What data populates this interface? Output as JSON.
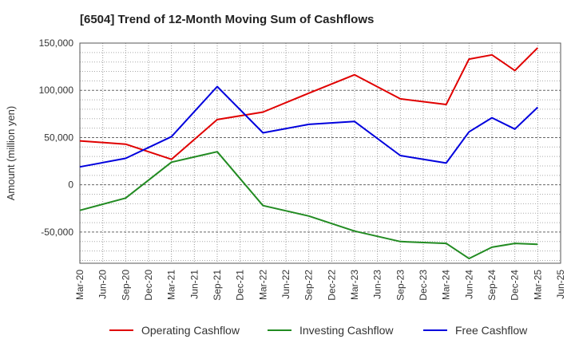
{
  "chart_data": {
    "type": "line",
    "title": "[6504]  Trend of 12-Month Moving Sum of Cashflows",
    "xlabel": "",
    "ylabel": "Amount (million yen)",
    "x": [
      "Mar-20",
      "Jun-20",
      "Sep-20",
      "Dec-20",
      "Mar-21",
      "Jun-21",
      "Sep-21",
      "Dec-21",
      "Mar-22",
      "Jun-22",
      "Sep-22",
      "Dec-22",
      "Mar-23",
      "Jun-23",
      "Sep-23",
      "Dec-23",
      "Mar-24",
      "Jun-24",
      "Sep-24",
      "Dec-24",
      "Mar-25",
      "Jun-25"
    ],
    "yticks": [
      150000,
      100000,
      50000,
      0,
      -50000
    ],
    "ytick_labels": [
      "150,000",
      "100,000",
      "50,000",
      "0",
      "-50,000"
    ],
    "ylim": [
      -83000,
      150000
    ],
    "grid": true,
    "legend_position": "bottom",
    "series": [
      {
        "name": "Operating Cashflow",
        "color": "#e00000",
        "values": [
          46500,
          null,
          43000,
          null,
          27000,
          null,
          69000,
          null,
          77000,
          null,
          97000,
          null,
          116500,
          null,
          91000,
          null,
          85000,
          133000,
          137500,
          121000,
          145000,
          null
        ]
      },
      {
        "name": "Investing Cashflow",
        "color": "#228b22",
        "values": [
          -27000,
          null,
          -14000,
          null,
          24000,
          null,
          35000,
          null,
          -22000,
          null,
          -33000,
          null,
          -49000,
          null,
          -60000,
          null,
          -62000,
          -78000,
          -66000,
          -62000,
          -63000,
          null
        ]
      },
      {
        "name": "Free Cashflow",
        "color": "#0000dd",
        "values": [
          19000,
          null,
          28000,
          null,
          51000,
          null,
          104000,
          null,
          55000,
          null,
          64000,
          null,
          67000,
          null,
          31000,
          null,
          23000,
          56000,
          71000,
          59000,
          82000,
          null
        ]
      }
    ]
  }
}
